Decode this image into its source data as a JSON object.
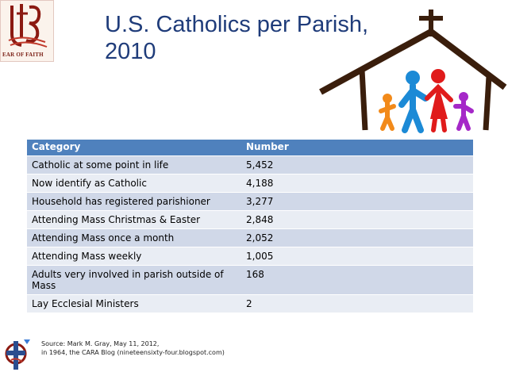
{
  "title_line1": "U.S. Catholics per Parish,",
  "title_line2": "2010",
  "logo": {
    "text": "EAR OF FAITH"
  },
  "table": {
    "headers": [
      "Category",
      "Number"
    ],
    "rows": [
      {
        "category": "Catholic at some point in life",
        "number": "5,452"
      },
      {
        "category": "Now identify as Catholic",
        "number": "4,188"
      },
      {
        "category": "Household has registered parishioner",
        "number": "3,277"
      },
      {
        "category": "Attending Mass Christmas & Easter",
        "number": "2,848"
      },
      {
        "category": "Attending Mass once a month",
        "number": "2,052"
      },
      {
        "category": "Attending Mass weekly",
        "number": "1,005"
      },
      {
        "category": "Adults very involved in parish outside of Mass",
        "number": "168"
      },
      {
        "category": "Lay Ecclesial Ministers",
        "number": "2"
      }
    ]
  },
  "source": {
    "line1": "Source: Mark M. Gray,  May 11, 2012,",
    "line2": "in 1964, the CARA Blog (nineteensixty-four.blogspot.com)"
  },
  "colors": {
    "title": "#1f3c7a",
    "header": "#4f81bd",
    "row_odd": "#d0d8e8",
    "row_even": "#e9edf4"
  }
}
